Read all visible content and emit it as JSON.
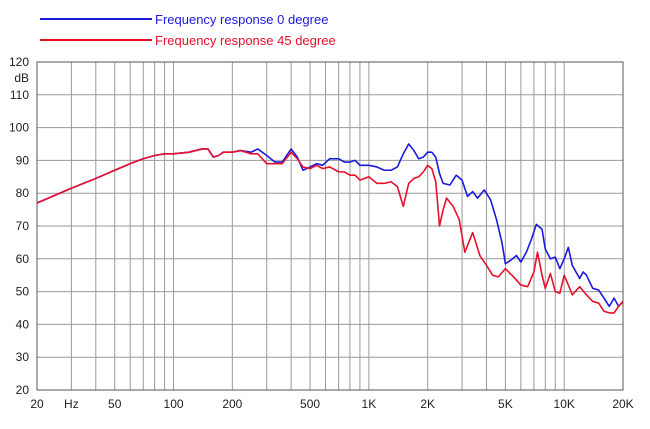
{
  "chart_data": {
    "type": "line",
    "x_scale": "log",
    "xlim": [
      20,
      20000
    ],
    "ylim": [
      20,
      120
    ],
    "ylabel": "dB",
    "grid": true,
    "legend_position": "top-left",
    "x_tick_labels": [
      {
        "value": 20,
        "label": "20"
      },
      {
        "value": 30,
        "label": "Hz"
      },
      {
        "value": 50,
        "label": "50"
      },
      {
        "value": 100,
        "label": "100"
      },
      {
        "value": 200,
        "label": "200"
      },
      {
        "value": 500,
        "label": "500"
      },
      {
        "value": 1000,
        "label": "1K"
      },
      {
        "value": 2000,
        "label": "2K"
      },
      {
        "value": 5000,
        "label": "5K"
      },
      {
        "value": 10000,
        "label": "10K"
      },
      {
        "value": 20000,
        "label": "20K"
      }
    ],
    "y_ticks": [
      20,
      30,
      40,
      50,
      60,
      70,
      80,
      90,
      100,
      110,
      120
    ],
    "series": [
      {
        "name": "Frequency response 0 degree",
        "color": "#1a1adb",
        "points": [
          [
            20,
            77
          ],
          [
            25,
            79.5
          ],
          [
            30,
            81.5
          ],
          [
            40,
            84.5
          ],
          [
            50,
            87
          ],
          [
            60,
            89
          ],
          [
            70,
            90.5
          ],
          [
            80,
            91.5
          ],
          [
            90,
            92
          ],
          [
            100,
            92
          ],
          [
            120,
            92.5
          ],
          [
            140,
            93.5
          ],
          [
            150,
            93.5
          ],
          [
            160,
            91
          ],
          [
            170,
            91.5
          ],
          [
            180,
            92.5
          ],
          [
            200,
            92.5
          ],
          [
            220,
            93
          ],
          [
            250,
            92.5
          ],
          [
            270,
            93.5
          ],
          [
            300,
            91.5
          ],
          [
            330,
            89.5
          ],
          [
            360,
            89.5
          ],
          [
            400,
            93.5
          ],
          [
            430,
            91
          ],
          [
            460,
            87
          ],
          [
            500,
            88
          ],
          [
            540,
            89
          ],
          [
            580,
            88.5
          ],
          [
            630,
            90.5
          ],
          [
            700,
            90.5
          ],
          [
            750,
            89.5
          ],
          [
            800,
            89.5
          ],
          [
            850,
            90
          ],
          [
            900,
            88.5
          ],
          [
            1000,
            88.5
          ],
          [
            1100,
            88
          ],
          [
            1200,
            87
          ],
          [
            1300,
            87
          ],
          [
            1400,
            88
          ],
          [
            1500,
            92
          ],
          [
            1600,
            95
          ],
          [
            1700,
            93
          ],
          [
            1800,
            90.5
          ],
          [
            1900,
            91
          ],
          [
            2000,
            92.5
          ],
          [
            2100,
            92.5
          ],
          [
            2200,
            91
          ],
          [
            2300,
            86
          ],
          [
            2400,
            83
          ],
          [
            2600,
            82.5
          ],
          [
            2800,
            85.5
          ],
          [
            3000,
            84
          ],
          [
            3200,
            79
          ],
          [
            3400,
            80.5
          ],
          [
            3600,
            78.5
          ],
          [
            3900,
            81
          ],
          [
            4200,
            78
          ],
          [
            4500,
            72
          ],
          [
            4800,
            65
          ],
          [
            5000,
            58.5
          ],
          [
            5300,
            59.5
          ],
          [
            5700,
            61
          ],
          [
            6000,
            59
          ],
          [
            6400,
            62
          ],
          [
            6800,
            66
          ],
          [
            7200,
            70.5
          ],
          [
            7700,
            69
          ],
          [
            8000,
            63
          ],
          [
            8500,
            60
          ],
          [
            9000,
            60.5
          ],
          [
            9500,
            57
          ],
          [
            10000,
            60
          ],
          [
            10500,
            63.5
          ],
          [
            11000,
            58
          ],
          [
            12000,
            54
          ],
          [
            12500,
            56
          ],
          [
            13000,
            55
          ],
          [
            14000,
            51
          ],
          [
            15000,
            50.5
          ],
          [
            16000,
            48
          ],
          [
            17000,
            45.5
          ],
          [
            18000,
            48
          ],
          [
            19000,
            45.5
          ],
          [
            20000,
            47
          ]
        ]
      },
      {
        "name": "Frequency response 45 degree",
        "color": "#e8102a",
        "points": [
          [
            20,
            77
          ],
          [
            25,
            79.5
          ],
          [
            30,
            81.5
          ],
          [
            40,
            84.5
          ],
          [
            50,
            87
          ],
          [
            60,
            89
          ],
          [
            70,
            90.5
          ],
          [
            80,
            91.5
          ],
          [
            90,
            92
          ],
          [
            100,
            92
          ],
          [
            120,
            92.5
          ],
          [
            140,
            93.5
          ],
          [
            150,
            93.5
          ],
          [
            160,
            91
          ],
          [
            170,
            91.5
          ],
          [
            180,
            92.5
          ],
          [
            200,
            92.5
          ],
          [
            220,
            93
          ],
          [
            250,
            92
          ],
          [
            270,
            92
          ],
          [
            300,
            89
          ],
          [
            330,
            89
          ],
          [
            360,
            89
          ],
          [
            400,
            92.5
          ],
          [
            430,
            90.5
          ],
          [
            460,
            88
          ],
          [
            500,
            87.5
          ],
          [
            540,
            88.5
          ],
          [
            580,
            87.5
          ],
          [
            630,
            88
          ],
          [
            700,
            86.5
          ],
          [
            750,
            86.5
          ],
          [
            800,
            85.5
          ],
          [
            850,
            85.5
          ],
          [
            900,
            84
          ],
          [
            1000,
            85
          ],
          [
            1100,
            83
          ],
          [
            1200,
            83
          ],
          [
            1300,
            83.5
          ],
          [
            1400,
            82
          ],
          [
            1500,
            76
          ],
          [
            1600,
            83
          ],
          [
            1700,
            84.5
          ],
          [
            1800,
            85
          ],
          [
            1900,
            86.5
          ],
          [
            2000,
            88.5
          ],
          [
            2100,
            87.5
          ],
          [
            2200,
            83.5
          ],
          [
            2300,
            70
          ],
          [
            2400,
            75
          ],
          [
            2500,
            78.5
          ],
          [
            2700,
            76
          ],
          [
            2900,
            72
          ],
          [
            3100,
            62
          ],
          [
            3400,
            68
          ],
          [
            3700,
            61
          ],
          [
            4000,
            58
          ],
          [
            4300,
            55
          ],
          [
            4600,
            54.5
          ],
          [
            5000,
            57
          ],
          [
            5500,
            54.5
          ],
          [
            6000,
            52
          ],
          [
            6500,
            51.5
          ],
          [
            7000,
            56
          ],
          [
            7300,
            62
          ],
          [
            7700,
            55
          ],
          [
            8000,
            51
          ],
          [
            8500,
            55.5
          ],
          [
            9000,
            50
          ],
          [
            9500,
            49.5
          ],
          [
            10000,
            55
          ],
          [
            10500,
            52
          ],
          [
            11000,
            49
          ],
          [
            12000,
            51.5
          ],
          [
            13000,
            49
          ],
          [
            14000,
            47
          ],
          [
            15000,
            46.5
          ],
          [
            16000,
            44
          ],
          [
            17000,
            43.5
          ],
          [
            18000,
            43.5
          ],
          [
            19000,
            45.5
          ],
          [
            20000,
            47
          ]
        ]
      }
    ]
  }
}
